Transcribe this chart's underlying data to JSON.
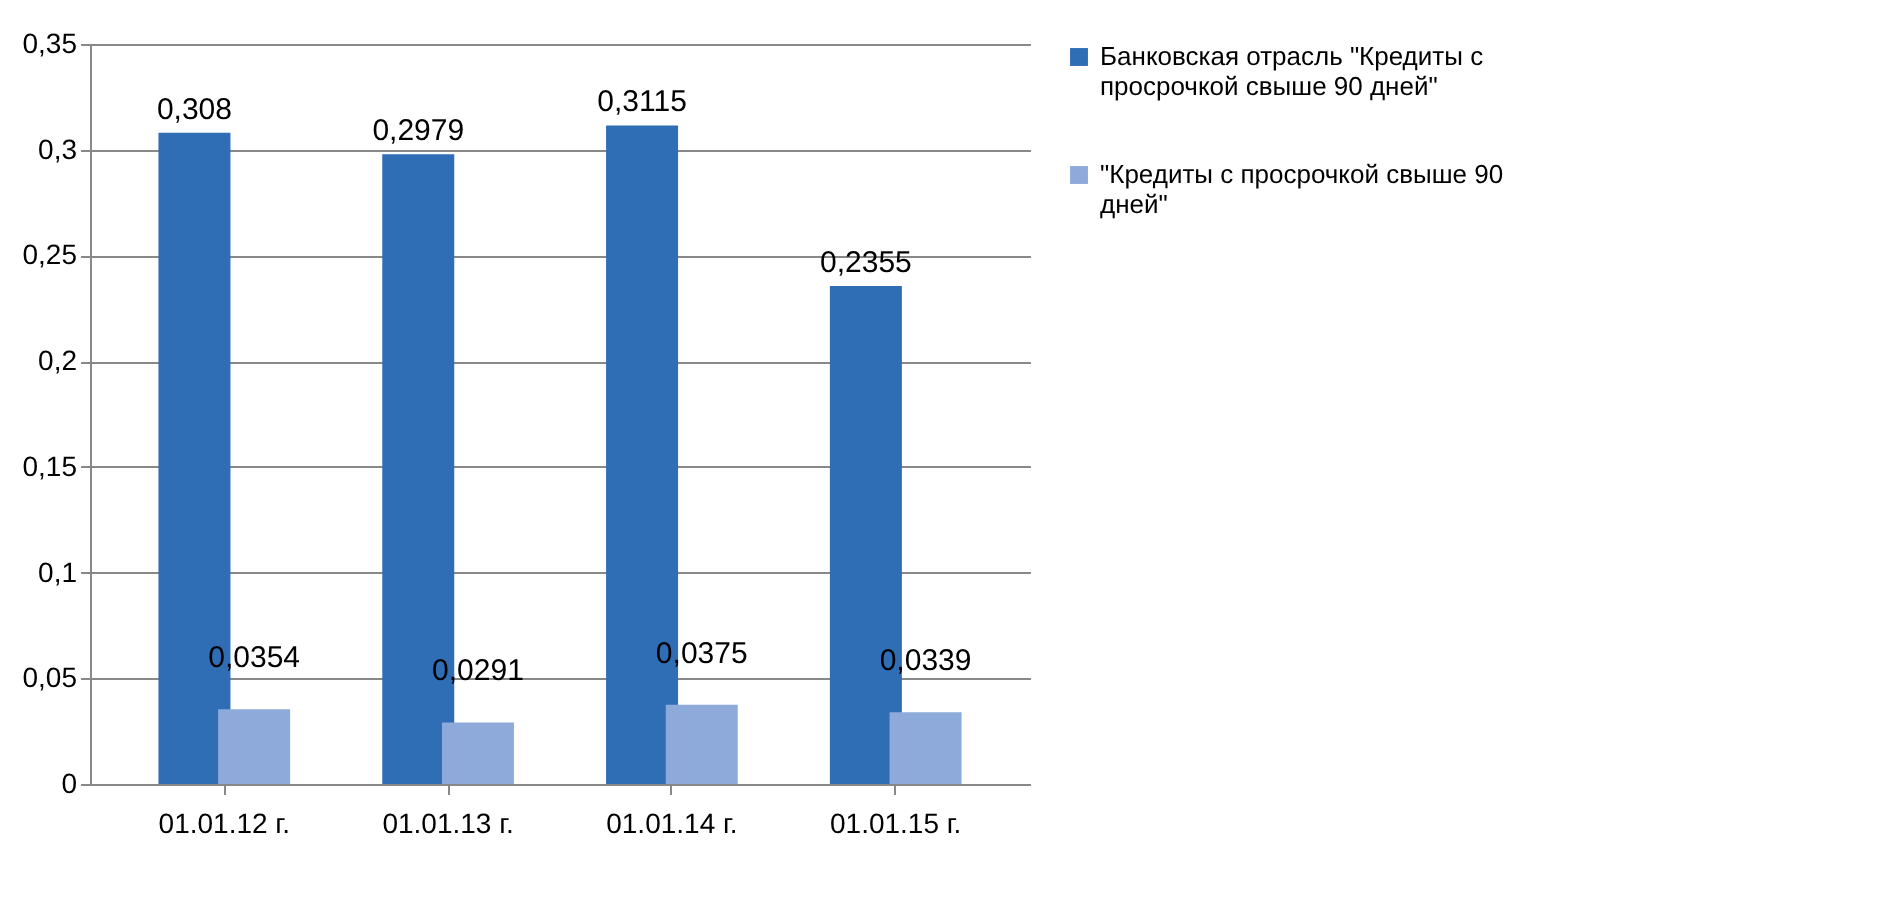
{
  "chart_data": {
    "type": "bar",
    "categories": [
      "01.01.12 г.",
      "01.01.13 г.",
      "01.01.14 г.",
      "01.01.15 г."
    ],
    "series": [
      {
        "name": "Банковская отрасль \"Кредиты с просрочкой свыше 90 дней\"",
        "color": "#2f6db5",
        "values": [
          0.308,
          0.2979,
          0.3115,
          0.2355
        ],
        "value_labels": [
          "0,308",
          "0,2979",
          "0,3115",
          "0,2355"
        ]
      },
      {
        "name": "\"Кредиты с просрочкой свыше 90 дней\"",
        "color": "#8eaadb",
        "values": [
          0.0354,
          0.0291,
          0.0375,
          0.0339
        ],
        "value_labels": [
          "0,0354",
          "0,0291",
          "0,0375",
          "0,0339"
        ]
      }
    ],
    "ylim": [
      0,
      0.35
    ],
    "yticks": [
      {
        "value": 0,
        "label": "0"
      },
      {
        "value": 0.05,
        "label": "0,05"
      },
      {
        "value": 0.1,
        "label": "0,1"
      },
      {
        "value": 0.15,
        "label": "0,15"
      },
      {
        "value": 0.2,
        "label": "0,2"
      },
      {
        "value": 0.25,
        "label": "0,25"
      },
      {
        "value": 0.3,
        "label": "0,3"
      },
      {
        "value": 0.35,
        "label": "0,35"
      }
    ],
    "grid": "y",
    "legend": "right"
  }
}
